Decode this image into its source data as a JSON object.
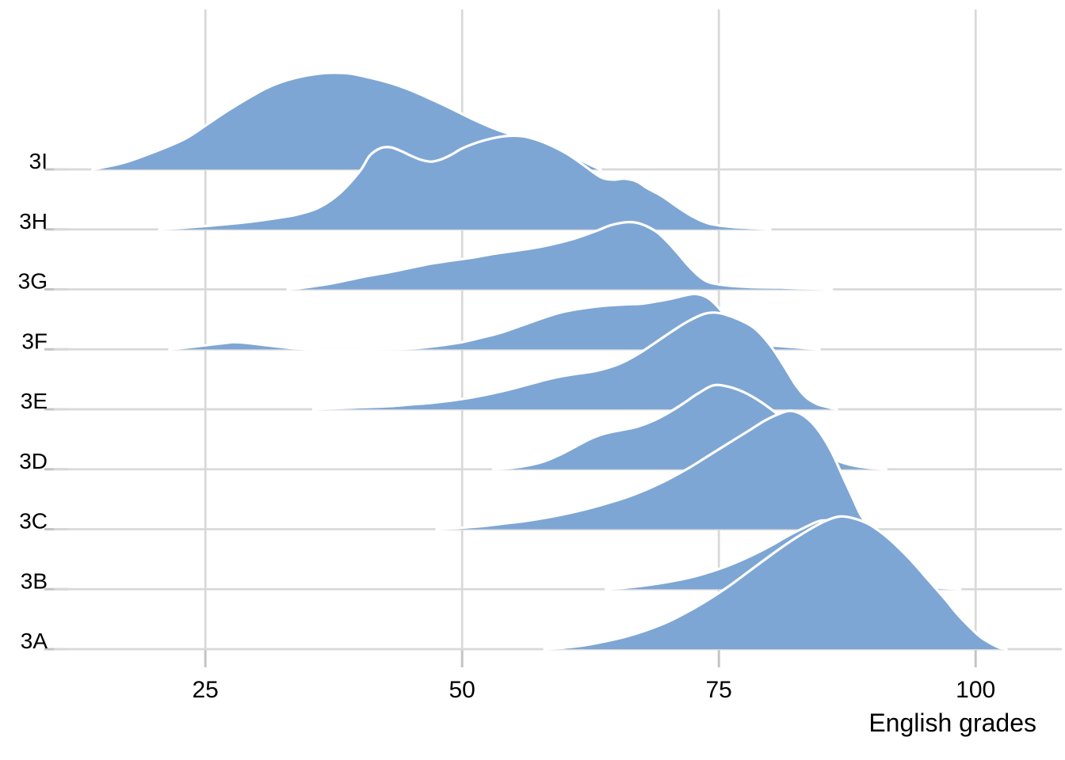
{
  "colors": {
    "ridge_fill": "#7EA6D4",
    "ridge_outline": "#FFFFFF",
    "gridline": "#D9D9D9",
    "tick": "#C4C4C4",
    "text": "#000000",
    "background": "#FFFFFF"
  },
  "chart_data": {
    "type": "area",
    "variant": "ridgeline",
    "title": "",
    "xlabel": "English grades",
    "ylabel": "",
    "xlim": [
      10,
      106
    ],
    "x_ticks": [
      25,
      50,
      75,
      100
    ],
    "x_tick_labels": [
      "25",
      "50",
      "75",
      "100"
    ],
    "grid": true,
    "legend": false,
    "categories_top_to_bottom": [
      "3I",
      "3H",
      "3G",
      "3F",
      "3E",
      "3D",
      "3C",
      "3B",
      "3A"
    ],
    "density_unit": "relative density; 1.0 equals one category row spacing",
    "series": [
      {
        "name": "3I",
        "points": [
          [
            14,
            0
          ],
          [
            17,
            0.11
          ],
          [
            20,
            0.29
          ],
          [
            23,
            0.51
          ],
          [
            25,
            0.73
          ],
          [
            27,
            0.96
          ],
          [
            29,
            1.17
          ],
          [
            31,
            1.36
          ],
          [
            33,
            1.49
          ],
          [
            35,
            1.57
          ],
          [
            37,
            1.61
          ],
          [
            39,
            1.6
          ],
          [
            41,
            1.53
          ],
          [
            43,
            1.44
          ],
          [
            45,
            1.32
          ],
          [
            47,
            1.17
          ],
          [
            49,
            1.01
          ],
          [
            51,
            0.84
          ],
          [
            53,
            0.69
          ],
          [
            55,
            0.57
          ],
          [
            57,
            0.48
          ],
          [
            58.5,
            0.4
          ],
          [
            60,
            0.29
          ],
          [
            61.5,
            0.16
          ],
          [
            62.8,
            0.05
          ],
          [
            63.5,
            0
          ]
        ]
      },
      {
        "name": "3H",
        "points": [
          [
            20.5,
            0
          ],
          [
            23,
            0.03
          ],
          [
            26,
            0.07
          ],
          [
            29,
            0.12
          ],
          [
            32,
            0.19
          ],
          [
            34,
            0.25
          ],
          [
            36,
            0.36
          ],
          [
            38,
            0.59
          ],
          [
            40,
            0.96
          ],
          [
            41,
            1.23
          ],
          [
            42,
            1.35
          ],
          [
            43,
            1.37
          ],
          [
            44,
            1.31
          ],
          [
            45,
            1.23
          ],
          [
            46,
            1.16
          ],
          [
            47,
            1.13
          ],
          [
            48,
            1.17
          ],
          [
            49,
            1.25
          ],
          [
            50,
            1.35
          ],
          [
            51.5,
            1.45
          ],
          [
            53,
            1.52
          ],
          [
            54.5,
            1.56
          ],
          [
            56,
            1.55
          ],
          [
            57.5,
            1.48
          ],
          [
            59,
            1.37
          ],
          [
            60.5,
            1.23
          ],
          [
            62,
            1.05
          ],
          [
            63.5,
            0.87
          ],
          [
            64.7,
            0.83
          ],
          [
            65.8,
            0.845
          ],
          [
            67,
            0.8
          ],
          [
            68,
            0.69
          ],
          [
            69.5,
            0.55
          ],
          [
            71,
            0.37
          ],
          [
            72.5,
            0.21
          ],
          [
            74,
            0.1
          ],
          [
            76,
            0.045
          ],
          [
            78,
            0.025
          ],
          [
            80,
            0
          ]
        ]
      },
      {
        "name": "3G",
        "points": [
          [
            33,
            0
          ],
          [
            35,
            0.04
          ],
          [
            37,
            0.09
          ],
          [
            39,
            0.16
          ],
          [
            41,
            0.23
          ],
          [
            43,
            0.29
          ],
          [
            45,
            0.36
          ],
          [
            47,
            0.43
          ],
          [
            49,
            0.48
          ],
          [
            51,
            0.53
          ],
          [
            53,
            0.59
          ],
          [
            55,
            0.64
          ],
          [
            57,
            0.69
          ],
          [
            59,
            0.76
          ],
          [
            61,
            0.85
          ],
          [
            63,
            0.97
          ],
          [
            64.5,
            1.07
          ],
          [
            66,
            1.12
          ],
          [
            67,
            1.11
          ],
          [
            68,
            1.05
          ],
          [
            69,
            0.95
          ],
          [
            70,
            0.79
          ],
          [
            71,
            0.6
          ],
          [
            72,
            0.4
          ],
          [
            73,
            0.23
          ],
          [
            74,
            0.12
          ],
          [
            75.5,
            0.07
          ],
          [
            78,
            0.04
          ],
          [
            81,
            0.03
          ],
          [
            84,
            0.013
          ],
          [
            86,
            0
          ]
        ]
      },
      {
        "name": "3F",
        "points": [
          [
            21.5,
            0
          ],
          [
            23,
            0.027
          ],
          [
            25,
            0.067
          ],
          [
            27,
            0.107
          ],
          [
            27.7,
            0.12
          ],
          [
            29,
            0.107
          ],
          [
            31,
            0.067
          ],
          [
            33,
            0.027
          ],
          [
            34.5,
            0.007
          ],
          [
            36,
            0
          ],
          [
            40,
            0
          ],
          [
            44,
            0.007
          ],
          [
            46,
            0.027
          ],
          [
            48,
            0.067
          ],
          [
            50,
            0.12
          ],
          [
            52,
            0.2
          ],
          [
            54,
            0.29
          ],
          [
            56,
            0.41
          ],
          [
            58,
            0.53
          ],
          [
            60,
            0.63
          ],
          [
            62,
            0.69
          ],
          [
            64,
            0.73
          ],
          [
            66,
            0.75
          ],
          [
            67.5,
            0.76
          ],
          [
            69,
            0.8
          ],
          [
            70.5,
            0.85
          ],
          [
            72,
            0.91
          ],
          [
            72.9,
            0.92
          ],
          [
            74,
            0.85
          ],
          [
            75,
            0.69
          ],
          [
            76,
            0.48
          ],
          [
            77,
            0.29
          ],
          [
            78,
            0.16
          ],
          [
            79.5,
            0.08
          ],
          [
            81,
            0.053
          ],
          [
            83,
            0.027
          ],
          [
            84.8,
            0
          ]
        ]
      },
      {
        "name": "3E",
        "points": [
          [
            35.5,
            0
          ],
          [
            37,
            0.013
          ],
          [
            39,
            0.027
          ],
          [
            41,
            0.04
          ],
          [
            43,
            0.053
          ],
          [
            45,
            0.08
          ],
          [
            47,
            0.107
          ],
          [
            49,
            0.147
          ],
          [
            51,
            0.2
          ],
          [
            53,
            0.267
          ],
          [
            55,
            0.347
          ],
          [
            57,
            0.44
          ],
          [
            58.5,
            0.507
          ],
          [
            60,
            0.56
          ],
          [
            61.5,
            0.6
          ],
          [
            63,
            0.64
          ],
          [
            64.5,
            0.707
          ],
          [
            66,
            0.813
          ],
          [
            67.5,
            0.96
          ],
          [
            69,
            1.133
          ],
          [
            70.5,
            1.307
          ],
          [
            72,
            1.467
          ],
          [
            73.5,
            1.587
          ],
          [
            74.5,
            1.613
          ],
          [
            75.5,
            1.587
          ],
          [
            77,
            1.493
          ],
          [
            78.5,
            1.347
          ],
          [
            80,
            1.067
          ],
          [
            81.3,
            0.733
          ],
          [
            82.5,
            0.4
          ],
          [
            83.5,
            0.2
          ],
          [
            84.5,
            0.093
          ],
          [
            85.5,
            0.04
          ],
          [
            86.5,
            0
          ]
        ]
      },
      {
        "name": "3D",
        "points": [
          [
            53,
            0
          ],
          [
            55,
            0.027
          ],
          [
            56.5,
            0.067
          ],
          [
            58,
            0.133
          ],
          [
            59.5,
            0.24
          ],
          [
            61,
            0.373
          ],
          [
            62.5,
            0.507
          ],
          [
            64,
            0.6
          ],
          [
            65.5,
            0.653
          ],
          [
            67,
            0.707
          ],
          [
            68.5,
            0.8
          ],
          [
            70,
            0.933
          ],
          [
            71.5,
            1.093
          ],
          [
            73,
            1.267
          ],
          [
            74.5,
            1.4
          ],
          [
            76,
            1.373
          ],
          [
            77.5,
            1.28
          ],
          [
            79,
            1.133
          ],
          [
            80.5,
            0.947
          ],
          [
            82,
            0.733
          ],
          [
            83.5,
            0.507
          ],
          [
            85,
            0.293
          ],
          [
            86.5,
            0.147
          ],
          [
            88,
            0.067
          ],
          [
            89.5,
            0.027
          ],
          [
            91.3,
            0
          ]
        ]
      },
      {
        "name": "3C",
        "points": [
          [
            47.5,
            0
          ],
          [
            50,
            0.027
          ],
          [
            52,
            0.053
          ],
          [
            54,
            0.093
          ],
          [
            56,
            0.133
          ],
          [
            58,
            0.187
          ],
          [
            60,
            0.253
          ],
          [
            62,
            0.333
          ],
          [
            64,
            0.427
          ],
          [
            66,
            0.533
          ],
          [
            68,
            0.667
          ],
          [
            70,
            0.827
          ],
          [
            72,
            1.013
          ],
          [
            74,
            1.227
          ],
          [
            76,
            1.44
          ],
          [
            78,
            1.653
          ],
          [
            79.5,
            1.813
          ],
          [
            81,
            1.933
          ],
          [
            82,
            1.973
          ],
          [
            83,
            1.92
          ],
          [
            84,
            1.787
          ],
          [
            85,
            1.573
          ],
          [
            86,
            1.28
          ],
          [
            87,
            0.907
          ],
          [
            88,
            0.533
          ],
          [
            88.8,
            0.24
          ],
          [
            89.5,
            0.08
          ],
          [
            90.2,
            0
          ]
        ]
      },
      {
        "name": "3B",
        "points": [
          [
            64,
            0
          ],
          [
            66,
            0.027
          ],
          [
            68,
            0.067
          ],
          [
            70,
            0.12
          ],
          [
            72,
            0.187
          ],
          [
            74,
            0.28
          ],
          [
            76,
            0.4
          ],
          [
            78,
            0.547
          ],
          [
            80,
            0.72
          ],
          [
            81.5,
            0.867
          ],
          [
            83,
            1.0
          ],
          [
            84.5,
            1.12
          ],
          [
            85.3,
            1.147
          ],
          [
            86.5,
            1.12
          ],
          [
            88,
            1.013
          ],
          [
            89.5,
            0.827
          ],
          [
            91,
            0.587
          ],
          [
            92.3,
            0.347
          ],
          [
            93.3,
            0.173
          ],
          [
            94.3,
            0.08
          ],
          [
            95.5,
            0.04
          ],
          [
            97,
            0.02
          ],
          [
            98.5,
            0
          ]
        ]
      },
      {
        "name": "3A",
        "points": [
          [
            58,
            0
          ],
          [
            60,
            0.027
          ],
          [
            62,
            0.067
          ],
          [
            64,
            0.133
          ],
          [
            66,
            0.213
          ],
          [
            68,
            0.32
          ],
          [
            70,
            0.453
          ],
          [
            72,
            0.627
          ],
          [
            74,
            0.827
          ],
          [
            76,
            1.053
          ],
          [
            78,
            1.307
          ],
          [
            80,
            1.56
          ],
          [
            82,
            1.8
          ],
          [
            84,
            2.013
          ],
          [
            85.5,
            2.147
          ],
          [
            86.8,
            2.213
          ],
          [
            88,
            2.187
          ],
          [
            89.5,
            2.093
          ],
          [
            91,
            1.92
          ],
          [
            92.5,
            1.693
          ],
          [
            94,
            1.427
          ],
          [
            95.5,
            1.133
          ],
          [
            97,
            0.84
          ],
          [
            98.2,
            0.587
          ],
          [
            99.4,
            0.373
          ],
          [
            100.5,
            0.2
          ],
          [
            101.5,
            0.093
          ],
          [
            102.3,
            0.027
          ],
          [
            103,
            0
          ]
        ]
      }
    ]
  },
  "x_axis": {
    "title": "English grades",
    "tick_labels": [
      "25",
      "50",
      "75",
      "100"
    ]
  },
  "y_axis": {
    "labels_top_to_bottom": [
      "3I",
      "3H",
      "3G",
      "3F",
      "3E",
      "3D",
      "3C",
      "3B",
      "3A"
    ]
  }
}
